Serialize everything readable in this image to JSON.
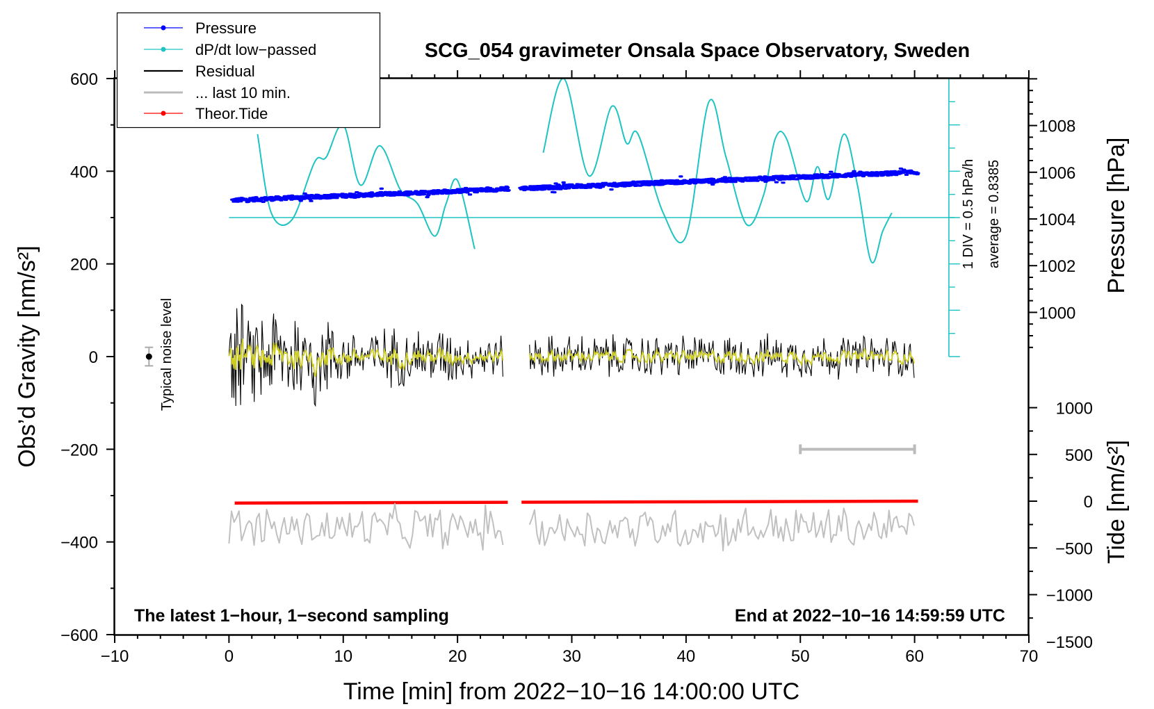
{
  "chart_data": {
    "type": "line",
    "title": "SCG_054 gravimeter Onsala Space Observatory, Sweden",
    "xlabel": "Time [min] from 2022−10−16 14:00:00 UTC",
    "ylabel_left": "Obs’d Gravity [nm/s²]",
    "ylabel_right_top": "Pressure [hPa]",
    "ylabel_right_bottom": "Tide [nm/s²]",
    "xlim": [
      -10,
      70
    ],
    "ylim": [
      -600,
      600
    ],
    "x_ticks": [
      "−10",
      "0",
      "10",
      "20",
      "30",
      "40",
      "50",
      "60",
      "70"
    ],
    "y_ticks": [
      "−600",
      "−400",
      "−200",
      "0",
      "200",
      "400",
      "600"
    ],
    "pressure_ticks": [
      "1000",
      "1002",
      "1004",
      "1006",
      "1008"
    ],
    "tide_ticks": [
      "−1500",
      "−1000",
      "−500",
      "0",
      "500",
      "1000"
    ],
    "legend": [
      {
        "label": "Pressure",
        "color": "#0000ff",
        "marker": true
      },
      {
        "label": "dP/dt low−passed",
        "color": "#1fc3c3",
        "marker": true
      },
      {
        "label": "Residual",
        "color": "#000000",
        "marker": false
      },
      {
        "label": "... last 10 min.",
        "color": "#bbbbbb",
        "marker": false
      },
      {
        "label": "Theor.Tide",
        "color": "#ff0000",
        "marker": true
      }
    ],
    "noise_label": "Typical noise level",
    "noise_level": {
      "x": -7,
      "y": 0,
      "error": 20
    },
    "scale_note_div": "1 DIV = 0.5 hPa/h",
    "scale_note_avg": "average = 0.8385",
    "left_note": "The latest 1−hour, 1−second sampling",
    "right_note": "End at 2022−10−16 14:59:59 UTC",
    "gap_minutes": [
      24.5,
      25.5
    ],
    "last10_bar": [
      50,
      60
    ],
    "last10_bar_y": -200,
    "series": [
      {
        "name": "Pressure",
        "unit": "hPa",
        "start_minute": 0.3,
        "end_minute": 60.3,
        "start_value": 1004.8,
        "end_value": 1006.0
      },
      {
        "name": "dP/dt low-passed",
        "unit": "nm/s² display",
        "baseline": 300,
        "points": [
          [
            2.5,
            480
          ],
          [
            3.7,
            310
          ],
          [
            5.5,
            295
          ],
          [
            7.5,
            420
          ],
          [
            8.5,
            430
          ],
          [
            10,
            500
          ],
          [
            11.5,
            370
          ],
          [
            13.2,
            455
          ],
          [
            15,
            360
          ],
          [
            16.5,
            330
          ],
          [
            18,
            260
          ],
          [
            19,
            330
          ],
          [
            20,
            380
          ],
          [
            21.5,
            232
          ],
          [
            27.5,
            440
          ],
          [
            29.3,
            600
          ],
          [
            31.5,
            390
          ],
          [
            33.5,
            540
          ],
          [
            34.8,
            460
          ],
          [
            35.8,
            480
          ],
          [
            38,
            310
          ],
          [
            40,
            260
          ],
          [
            42,
            550
          ],
          [
            43.5,
            430
          ],
          [
            45.3,
            285
          ],
          [
            46.8,
            350
          ],
          [
            47.8,
            470
          ],
          [
            48.8,
            470
          ],
          [
            50.5,
            335
          ],
          [
            51.5,
            410
          ],
          [
            52.5,
            340
          ],
          [
            53.8,
            480
          ],
          [
            55,
            370
          ],
          [
            56.2,
            205
          ],
          [
            57.2,
            270
          ],
          [
            58,
            310
          ]
        ]
      },
      {
        "name": "Residual",
        "start_minute": 0,
        "end_minute": 60,
        "amplitude_early": 150,
        "amplitude_late": 55
      },
      {
        "name": "Smoothed residual",
        "color": "#cccc22"
      },
      {
        "name": "Theor.Tide",
        "unit": "nm/s²",
        "start_minute": 0.5,
        "end_minute": 60.3,
        "start_value": -20,
        "end_value": 0
      },
      {
        "name": "... last 10 min.",
        "center": -370,
        "amplitude": 55
      }
    ]
  }
}
